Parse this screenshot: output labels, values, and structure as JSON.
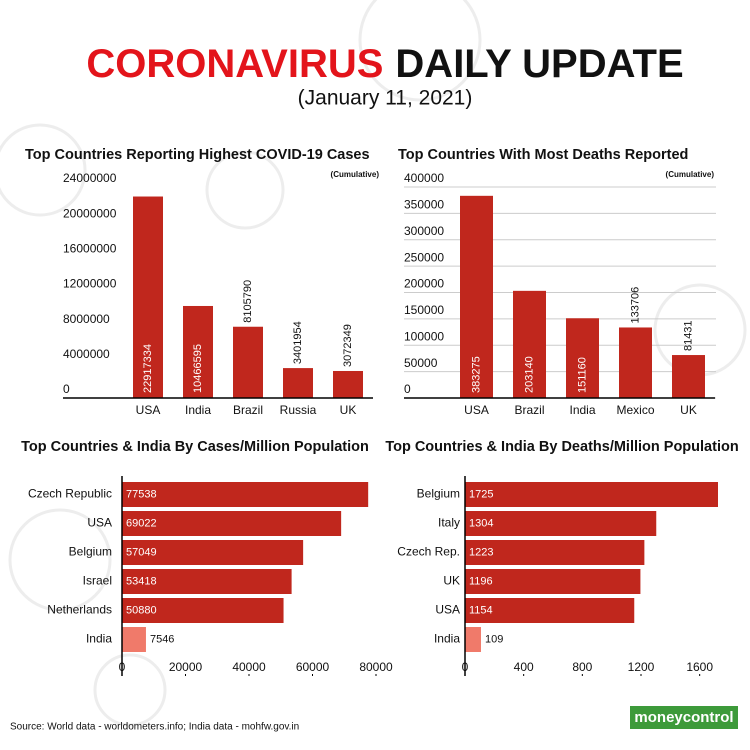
{
  "header": {
    "title_red": "CORONAVIRUS",
    "title_black": "DAILY UPDATE",
    "date": "(January 11, 2021)"
  },
  "chart_data": [
    {
      "type": "bar",
      "orientation": "vertical",
      "title": "Top Countries Reporting Highest COVID-19 Cases",
      "subtitle": "(Cumulative)",
      "categories": [
        "USA",
        "India",
        "Brazil",
        "Russia",
        "UK"
      ],
      "values": [
        22917334,
        10466595,
        8105790,
        3401954,
        3072349
      ],
      "color": "#c0271d",
      "ylim": [
        0,
        24000000
      ],
      "yticks": [
        0,
        4000000,
        8000000,
        12000000,
        16000000,
        20000000,
        24000000
      ],
      "grid": false
    },
    {
      "type": "bar",
      "orientation": "vertical",
      "title": "Top Countries With Most Deaths Reported",
      "subtitle": "(Cumulative)",
      "categories": [
        "USA",
        "Brazil",
        "India",
        "Mexico",
        "UK"
      ],
      "values": [
        383275,
        203140,
        151160,
        133706,
        81431
      ],
      "color": "#c0271d",
      "ylim": [
        0,
        400000
      ],
      "yticks": [
        0,
        50000,
        100000,
        150000,
        200000,
        250000,
        300000,
        350000,
        400000
      ],
      "grid": true
    },
    {
      "type": "bar",
      "orientation": "horizontal",
      "title": "Top Countries & India By Cases/Million Population",
      "categories": [
        "Czech Republic",
        "USA",
        "Belgium",
        "Israel",
        "Netherlands",
        "India"
      ],
      "values": [
        77538,
        69022,
        57049,
        53418,
        50880,
        7546
      ],
      "colors": [
        "#c0271d",
        "#c0271d",
        "#c0271d",
        "#c0271d",
        "#c0271d",
        "#f07a6a"
      ],
      "xlim": [
        0,
        80000
      ],
      "xticks": [
        0,
        20000,
        40000,
        60000,
        80000
      ],
      "grid": false
    },
    {
      "type": "bar",
      "orientation": "horizontal",
      "title": "Top Countries & India By Deaths/Million Population",
      "categories": [
        "Belgium",
        "Italy",
        "Czech Rep.",
        "UK",
        "USA",
        "India"
      ],
      "values": [
        1725,
        1304,
        1223,
        1196,
        1154,
        109
      ],
      "colors": [
        "#c0271d",
        "#c0271d",
        "#c0271d",
        "#c0271d",
        "#c0271d",
        "#f07a6a"
      ],
      "xlim": [
        0,
        1800
      ],
      "xticks": [
        0,
        400,
        800,
        1200,
        1600
      ],
      "grid": false
    }
  ],
  "footer": {
    "source": "Source: World data - worldometers.info; India data - mohfw.gov.in",
    "logo": "moneycontrol"
  }
}
